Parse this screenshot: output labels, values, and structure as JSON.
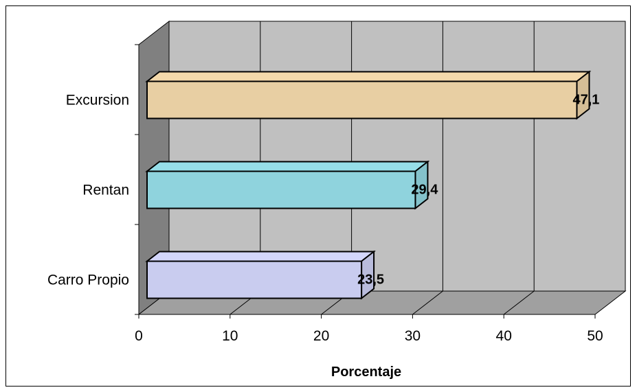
{
  "chart_data": {
    "type": "bar",
    "orientation": "horizontal",
    "three_d": true,
    "categories": [
      "Excursion",
      "Rentan",
      "Carro Propio"
    ],
    "values": [
      47.1,
      29.4,
      23.5
    ],
    "value_labels": [
      "47,1",
      "29,4",
      "23,5"
    ],
    "bar_colors": [
      "#e8cfa3",
      "#8fd3dd",
      "#c9ccef"
    ],
    "xlabel": "Porcentaje",
    "ylabel": "",
    "xlim": [
      0,
      50
    ],
    "x_ticks": [
      0,
      10,
      20,
      30,
      40,
      50
    ],
    "x_tick_labels": [
      "0",
      "10",
      "20",
      "30",
      "40",
      "50"
    ],
    "grid": true,
    "legend": "none"
  },
  "colors": {
    "wall": "#c0c0c0",
    "side_wall": "#808080",
    "floor": "#a0a0a0",
    "gridline": "#000000"
  }
}
